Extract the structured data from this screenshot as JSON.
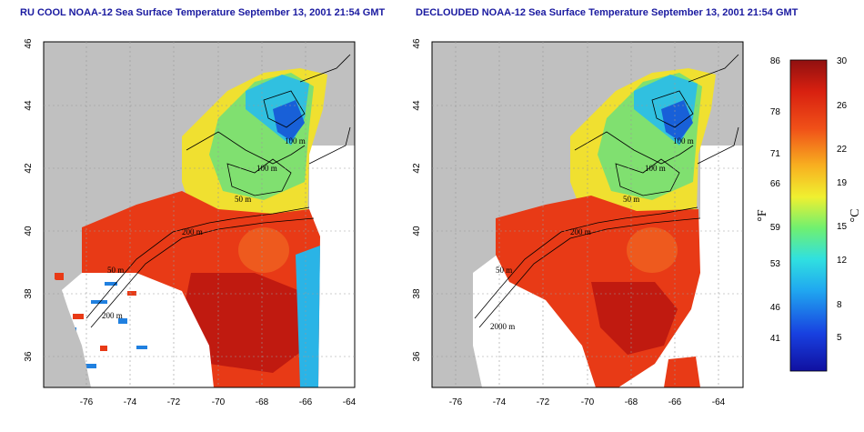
{
  "panels": [
    {
      "title": "RU COOL NOAA-12 Sea Surface Temperature September 13, 2001 21:54 GMT",
      "x_ticks": [
        "-76",
        "-74",
        "-72",
        "-70",
        "-68",
        "-66",
        "-64"
      ],
      "y_ticks": [
        "36",
        "38",
        "40",
        "42",
        "44",
        "46"
      ],
      "contour_labels": [
        "100 m",
        "100 m",
        "50 m",
        "200 m",
        "50 m",
        "200 m"
      ]
    },
    {
      "title": "DECLOUDED NOAA-12 Sea Surface Temperature September 13, 2001 21:54 GMT",
      "x_ticks": [
        "-76",
        "-74",
        "-72",
        "-70",
        "-68",
        "-66",
        "-64"
      ],
      "y_ticks": [
        "36",
        "38",
        "40",
        "42",
        "44",
        "46"
      ],
      "contour_labels": [
        "100 m",
        "100 m",
        "50 m",
        "200 m",
        "50 m",
        "2000 m"
      ]
    }
  ],
  "colorbar": {
    "fahrenheit_ticks": [
      "86",
      "78",
      "71",
      "66",
      "59",
      "53",
      "46",
      "41"
    ],
    "celsius_ticks": [
      "30",
      "26",
      "22",
      "19",
      "15",
      "12",
      "8",
      "5"
    ],
    "fahrenheit_unit": "°F",
    "celsius_unit": "°C"
  },
  "colors": {
    "land": "#c0c0c0",
    "title": "#1a1aa0",
    "warm": "#e83a16",
    "hot": "#c01a10",
    "cool": "#2ab4e6",
    "mid": "#f0e030"
  }
}
